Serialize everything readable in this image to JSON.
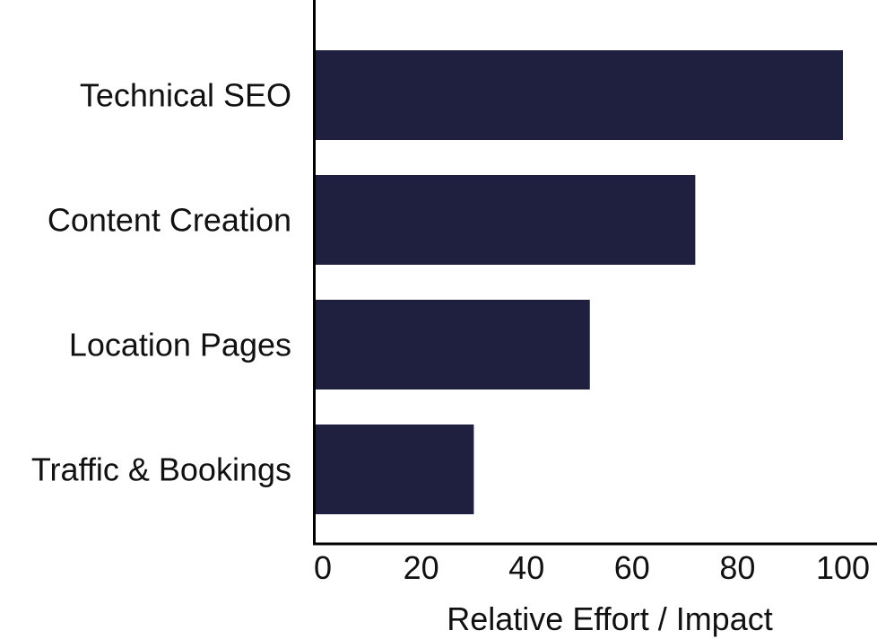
{
  "chart_data": {
    "type": "bar",
    "orientation": "horizontal",
    "categories": [
      "Technical SEO",
      "Content Creation",
      "Location Pages",
      "Traffic & Bookings"
    ],
    "values": [
      100,
      72,
      52,
      30
    ],
    "xlabel": "Relative Effort / Impact",
    "ylabel": "",
    "xlim": [
      0,
      100
    ],
    "xticks": [
      0,
      20,
      40,
      60,
      80,
      100
    ],
    "grid": false,
    "legend": "none",
    "bar_color": "#1f1f3f"
  }
}
